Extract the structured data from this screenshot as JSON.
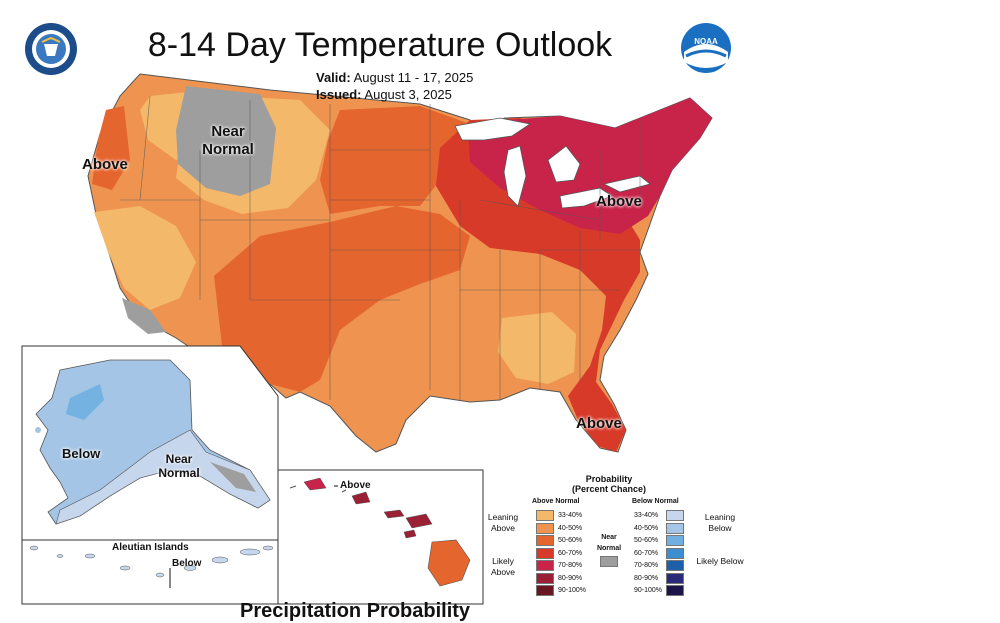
{
  "header": {
    "title": "8-14 Day Temperature Outlook",
    "valid_label": "Valid:",
    "valid_value": "August 11 - 17, 2025",
    "issued_label": "Issued:",
    "issued_value": "August 3, 2025"
  },
  "logos": {
    "left": "Department of Commerce seal",
    "right": "NOAA",
    "right_text": "NOAA"
  },
  "map_labels": {
    "conus": [
      {
        "text": "Above"
      },
      {
        "text": "Near Normal"
      },
      {
        "text": "Above"
      },
      {
        "text": "Above"
      }
    ],
    "alaska": [
      {
        "text": "Below"
      },
      {
        "text": "Near Normal"
      }
    ],
    "aleutian_title": "Aleutian Islands",
    "aleutian_label": "Below",
    "hawaii_label": "Above"
  },
  "legend": {
    "title_line1": "Probability",
    "title_line2": "(Percent Chance)",
    "above_header": "Above Normal",
    "below_header": "Below Normal",
    "near_normal": "Near Normal",
    "leaning_above": "Leaning Above",
    "likely_above": "Likely Above",
    "leaning_below": "Leaning Below",
    "likely_below": "Likely Below",
    "above_bins": [
      {
        "range": "33-40%",
        "color": "#f4b86a"
      },
      {
        "range": "40-50%",
        "color": "#ee9450"
      },
      {
        "range": "50-60%",
        "color": "#e5652f"
      },
      {
        "range": "60-70%",
        "color": "#d83a2a"
      },
      {
        "range": "70-80%",
        "color": "#c8244a"
      },
      {
        "range": "80-90%",
        "color": "#9b2035"
      },
      {
        "range": "90-100%",
        "color": "#6a1622"
      }
    ],
    "below_bins": [
      {
        "range": "33-40%",
        "color": "#c6d6ec"
      },
      {
        "range": "40-50%",
        "color": "#a5c5e6"
      },
      {
        "range": "50-60%",
        "color": "#6fb0e0"
      },
      {
        "range": "60-70%",
        "color": "#3b8fd0"
      },
      {
        "range": "70-80%",
        "color": "#1d5fa8"
      },
      {
        "range": "80-90%",
        "color": "#2a2a7a"
      },
      {
        "range": "90-100%",
        "color": "#1a1448"
      }
    ],
    "near_normal_color": "#9e9e9e"
  },
  "footer_cut_text": "Precipitation Probability"
}
